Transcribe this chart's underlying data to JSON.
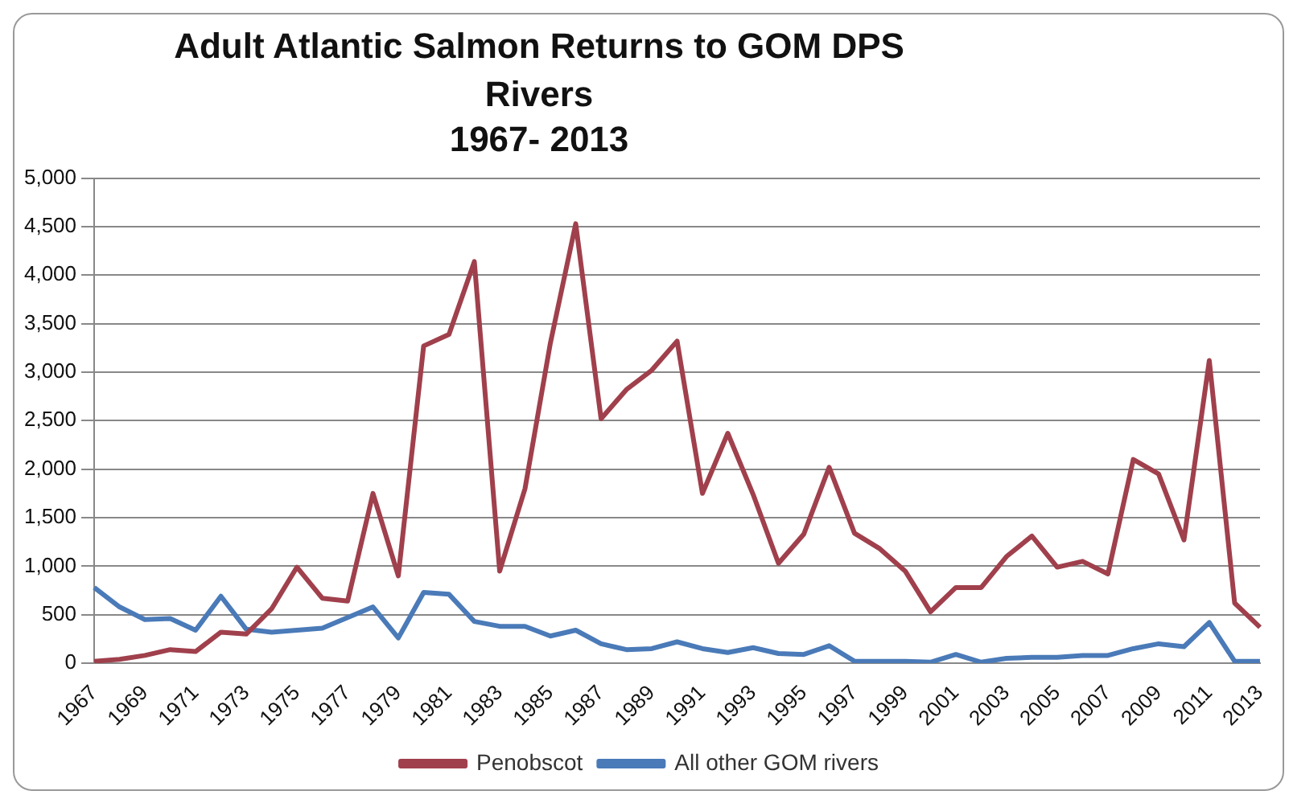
{
  "chart_data": {
    "type": "line",
    "title": "Adult Atlantic Salmon Returns to GOM DPS Rivers",
    "subtitle": "1967- 2013",
    "categories": [
      "1967",
      null,
      "1969",
      null,
      "1971",
      null,
      "1973",
      null,
      "1975",
      null,
      "1977",
      null,
      "1979",
      null,
      "1981",
      null,
      "1983",
      null,
      "1985",
      null,
      "1987",
      null,
      "1989",
      null,
      "1991",
      null,
      "1993",
      null,
      "1995",
      null,
      "1997",
      null,
      "1999",
      null,
      "2001",
      null,
      "2003",
      null,
      "2005",
      null,
      "2007",
      null,
      "2009",
      null,
      "2011",
      null,
      "2013"
    ],
    "series": [
      {
        "name": "Penobscot",
        "color": "#a0404c",
        "values": [
          20,
          40,
          80,
          140,
          120,
          320,
          300,
          560,
          990,
          670,
          640,
          1750,
          900,
          3270,
          3390,
          4140,
          950,
          1800,
          3300,
          4530,
          2520,
          2820,
          3020,
          3320,
          1750,
          2370,
          1740,
          1030,
          1330,
          2020,
          1340,
          1180,
          950,
          530,
          780,
          780,
          1100,
          1310,
          990,
          1050,
          920,
          2100,
          1950,
          1270,
          3120,
          620,
          370
        ]
      },
      {
        "name": "All other GOM rivers",
        "color": "#4a7ab8",
        "values": [
          780,
          580,
          450,
          460,
          340,
          690,
          350,
          320,
          340,
          360,
          470,
          580,
          260,
          730,
          710,
          430,
          380,
          380,
          280,
          340,
          200,
          140,
          150,
          220,
          150,
          110,
          160,
          100,
          90,
          180,
          20,
          20,
          20,
          10,
          90,
          10,
          50,
          60,
          60,
          80,
          80,
          150,
          200,
          170,
          420,
          20,
          20
        ]
      }
    ],
    "ylim": [
      0,
      5000
    ],
    "yticks": [
      0,
      {
        "value": 500,
        "label": "500"
      },
      {
        "value": 1000,
        "label": "1,000"
      },
      {
        "value": 1500,
        "label": "1,500"
      },
      {
        "value": 2000,
        "label": "2,000"
      },
      {
        "value": 2500,
        "label": "2,500"
      },
      {
        "value": 3000,
        "label": "3,000"
      },
      {
        "value": 3500,
        "label": "3,500"
      },
      {
        "value": 4000,
        "label": "4,000"
      },
      {
        "value": 4500,
        "label": "4,500"
      },
      {
        "value": 5000,
        "label": "5,000"
      }
    ],
    "grid": "y",
    "legend": "bottom",
    "marker": "none",
    "line_style": "solid"
  }
}
